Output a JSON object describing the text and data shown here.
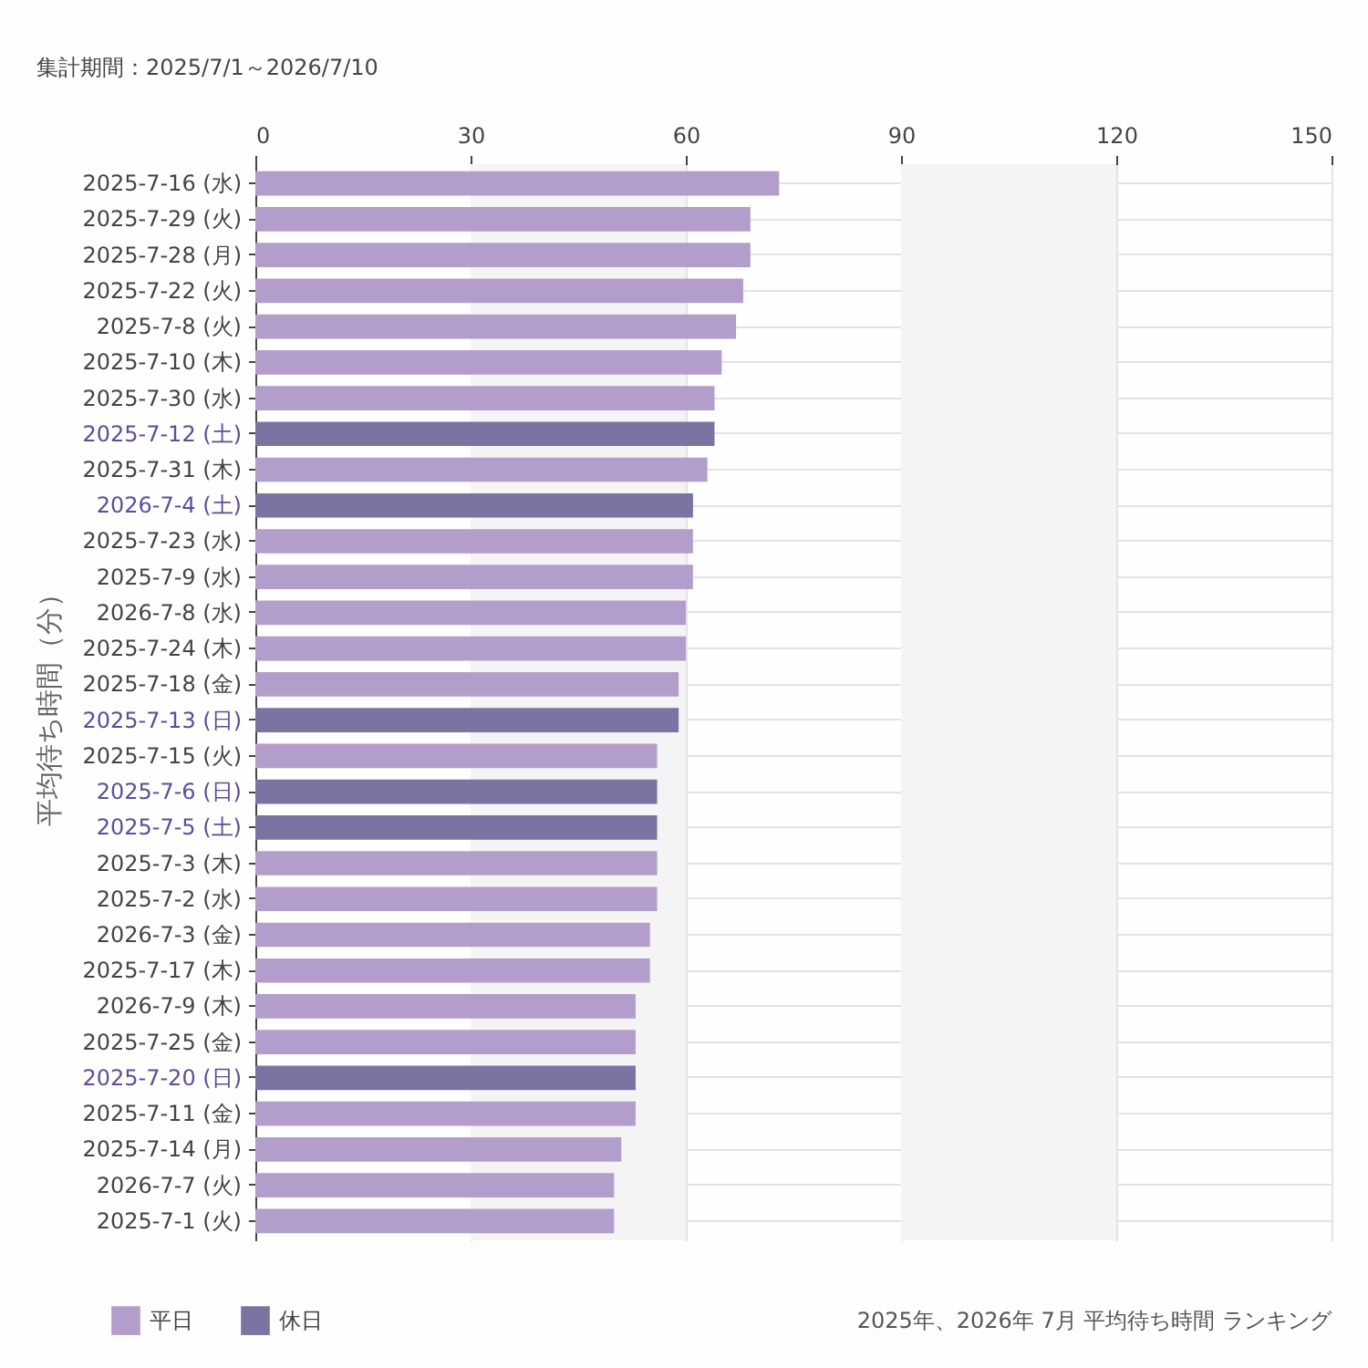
{
  "chart_data": {
    "type": "bar",
    "orientation": "horizontal",
    "title": "集計期間：2025/7/1～2026/7/10",
    "ylabel": "平均待ち時間（分）",
    "annotations": [
      "2025年、2026年 7月 平均待ち時間 ランキング"
    ],
    "categories": [
      "2025-7-16 (水)",
      "2025-7-29 (火)",
      "2025-7-28 (月)",
      "2025-7-22 (火)",
      "2025-7-8 (火)",
      "2025-7-10 (木)",
      "2025-7-30 (水)",
      "2025-7-12 (土)",
      "2025-7-31 (木)",
      "2026-7-4 (土)",
      "2025-7-23 (水)",
      "2025-7-9 (水)",
      "2026-7-8 (水)",
      "2025-7-24 (木)",
      "2025-7-18 (金)",
      "2025-7-13 (日)",
      "2025-7-15 (火)",
      "2025-7-6 (日)",
      "2025-7-5 (土)",
      "2025-7-3 (木)",
      "2025-7-2 (水)",
      "2026-7-3 (金)",
      "2025-7-17 (木)",
      "2026-7-9 (木)",
      "2025-7-25 (金)",
      "2025-7-20 (日)",
      "2025-7-11 (金)",
      "2025-7-14 (月)",
      "2026-7-7 (火)",
      "2025-7-1 (火)"
    ],
    "series": [
      {
        "name": "平日",
        "color": "#b39dcb",
        "values": [
          73,
          69,
          69,
          68,
          67,
          65,
          64,
          null,
          63,
          null,
          61,
          61,
          60,
          60,
          59,
          null,
          56,
          null,
          null,
          56,
          56,
          55,
          55,
          53,
          53,
          null,
          53,
          51,
          50,
          50
        ]
      },
      {
        "name": "休日",
        "color": "#7b74a3",
        "values": [
          null,
          null,
          null,
          null,
          null,
          null,
          null,
          64,
          null,
          61,
          null,
          null,
          null,
          null,
          null,
          59,
          null,
          56,
          56,
          null,
          null,
          null,
          null,
          null,
          null,
          53,
          null,
          null,
          null,
          null
        ]
      }
    ],
    "xlim": [
      0,
      150
    ],
    "xticks": [
      0,
      30,
      60,
      90,
      120,
      150
    ],
    "bands": [
      {
        "axis": "x",
        "from": 30,
        "to": 60,
        "color": "#f4f4f4"
      },
      {
        "axis": "x",
        "from": 90,
        "to": 120,
        "color": "#f4f4f4"
      }
    ],
    "grid": true,
    "legend": "bottom left"
  }
}
